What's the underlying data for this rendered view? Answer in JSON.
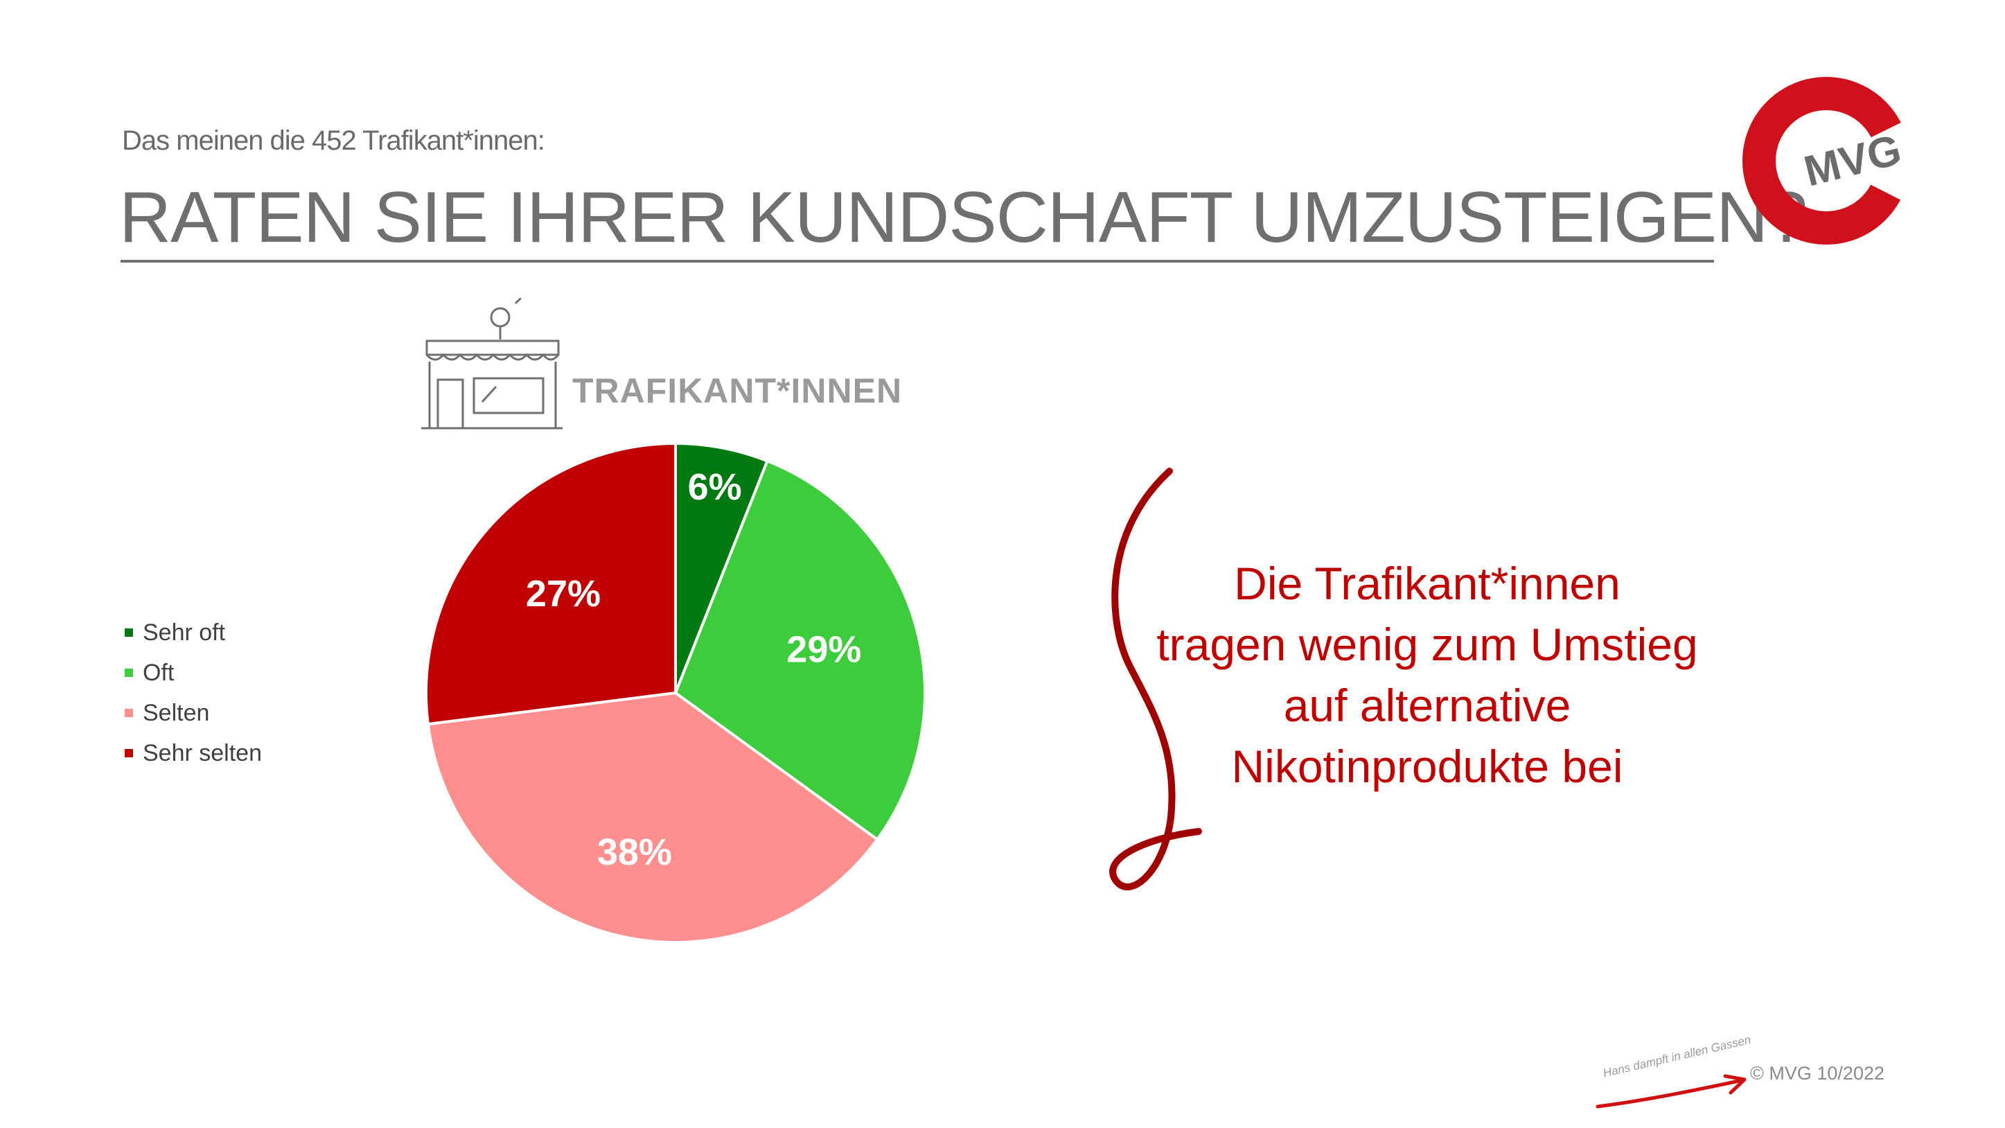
{
  "header": {
    "subtitle": "Das meinen die 452 Trafikant*innen:",
    "title": "RATEN SIE IHRER KUNDSCHAFT UMZUSTEIGEN?"
  },
  "logo": {
    "text": "MVG",
    "icon": "mvg-logo-icon",
    "color": "#d0101a"
  },
  "category_label": "TRAFIKANT*INNEN",
  "category_icon": "kiosk-shop-icon",
  "chart_data": {
    "type": "pie",
    "categories": [
      "Sehr oft",
      "Oft",
      "Selten",
      "Sehr selten"
    ],
    "values": [
      6,
      29,
      38,
      27
    ],
    "labels": [
      "6%",
      "29%",
      "38%",
      "27%"
    ],
    "colors": [
      "#007a10",
      "#3ccc3c",
      "#ff8f8f",
      "#c00000"
    ],
    "legend_placement": "left"
  },
  "callout": {
    "lines": [
      "Die Trafikant*innen",
      "tragen wenig zum Umstieg",
      "auf alternative",
      "Nikotinprodukte bei"
    ],
    "color": "#c00000"
  },
  "footer": {
    "credit": "© MVG 10/2022",
    "slogan": "Hans dampft in allen Gassen"
  }
}
